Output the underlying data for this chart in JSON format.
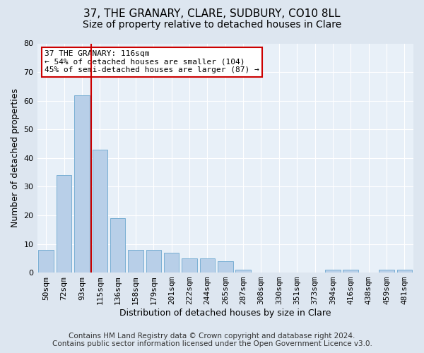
{
  "title": "37, THE GRANARY, CLARE, SUDBURY, CO10 8LL",
  "subtitle": "Size of property relative to detached houses in Clare",
  "xlabel": "Distribution of detached houses by size in Clare",
  "ylabel": "Number of detached properties",
  "categories": [
    "50sqm",
    "72sqm",
    "93sqm",
    "115sqm",
    "136sqm",
    "158sqm",
    "179sqm",
    "201sqm",
    "222sqm",
    "244sqm",
    "265sqm",
    "287sqm",
    "308sqm",
    "330sqm",
    "351sqm",
    "373sqm",
    "394sqm",
    "416sqm",
    "438sqm",
    "459sqm",
    "481sqm"
  ],
  "values": [
    8,
    34,
    62,
    43,
    19,
    8,
    8,
    7,
    5,
    5,
    4,
    1,
    0,
    0,
    0,
    0,
    1,
    1,
    0,
    1,
    1
  ],
  "bar_color": "#b8cfe8",
  "bar_edge_color": "#7aafd4",
  "redline_index": 2,
  "redline_label": "37 THE GRANARY: 116sqm",
  "annotation_line2": "← 54% of detached houses are smaller (104)",
  "annotation_line3": "45% of semi-detached houses are larger (87) →",
  "annotation_box_color": "#ffffff",
  "annotation_border_color": "#cc0000",
  "ylim": [
    0,
    80
  ],
  "yticks": [
    0,
    10,
    20,
    30,
    40,
    50,
    60,
    70,
    80
  ],
  "footer_line1": "Contains HM Land Registry data © Crown copyright and database right 2024.",
  "footer_line2": "Contains public sector information licensed under the Open Government Licence v3.0.",
  "bg_color": "#dde6f0",
  "plot_bg_color": "#e8f0f8",
  "grid_color": "#ffffff",
  "title_fontsize": 11,
  "subtitle_fontsize": 10,
  "axis_label_fontsize": 9,
  "tick_fontsize": 8,
  "annotation_fontsize": 8,
  "footer_fontsize": 7.5
}
